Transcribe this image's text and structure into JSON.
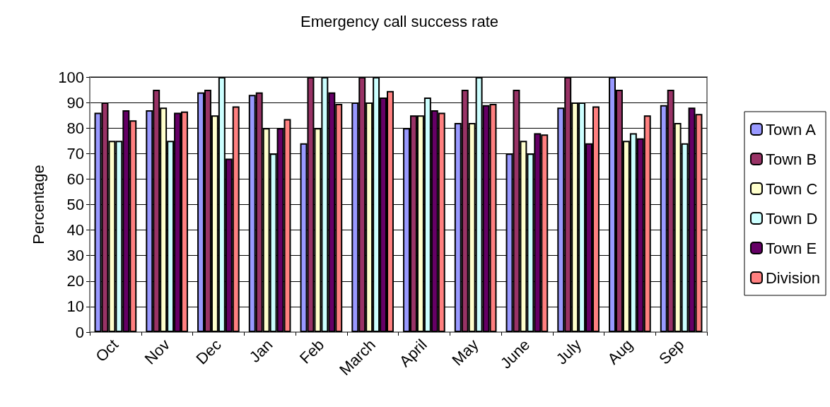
{
  "chart_data": {
    "type": "bar",
    "title": "Emergency call success rate",
    "ylabel": "Percentage",
    "categories": [
      "Oct",
      "Nov",
      "Dec",
      "Jan",
      "Feb",
      "March",
      "April",
      "May",
      "June",
      "July",
      "Aug",
      "Sep"
    ],
    "series": [
      {
        "name": "Town A",
        "color": "#9999ff",
        "values": [
          86,
          87,
          94,
          93,
          74,
          90,
          80,
          82,
          70,
          88,
          100,
          89
        ]
      },
      {
        "name": "Town B",
        "color": "#993366",
        "values": [
          90,
          95,
          95,
          94,
          100,
          100,
          85,
          95,
          95,
          100,
          95,
          95
        ]
      },
      {
        "name": "Town C",
        "color": "#ffffcc",
        "values": [
          75,
          88,
          85,
          80,
          80,
          90,
          85,
          82,
          75,
          90,
          75,
          82
        ]
      },
      {
        "name": "Town D",
        "color": "#ccffff",
        "values": [
          75,
          75,
          100,
          70,
          100,
          100,
          92,
          100,
          70,
          90,
          78,
          74
        ]
      },
      {
        "name": "Town E",
        "color": "#660066",
        "values": [
          87,
          86,
          68,
          80,
          94,
          92,
          87,
          89,
          78,
          74,
          76,
          88
        ]
      },
      {
        "name": "Division",
        "color": "#ff8080",
        "values": [
          83,
          86.5,
          88.5,
          83.5,
          89.5,
          94.5,
          86,
          89.5,
          77.5,
          88.5,
          85,
          85.5
        ]
      }
    ],
    "ylim": [
      0,
      100
    ],
    "yticks": [
      0,
      10,
      20,
      30,
      40,
      50,
      60,
      70,
      80,
      90,
      100
    ],
    "grid": "y",
    "legend": "right"
  }
}
